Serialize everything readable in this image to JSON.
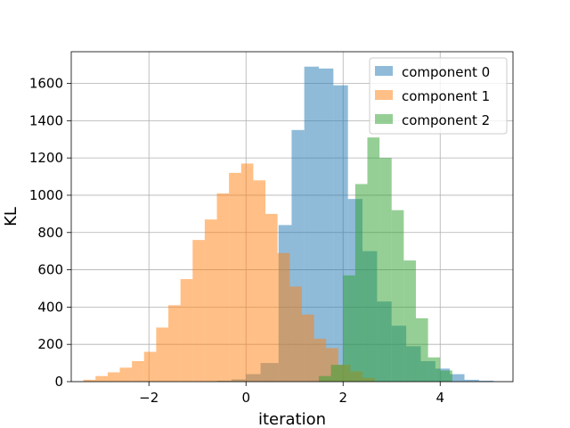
{
  "chart_data": {
    "type": "histogram",
    "xlabel": "iteration",
    "ylabel": "KL",
    "xlim": [
      -3.6,
      5.5
    ],
    "ylim": [
      0,
      1770
    ],
    "x_ticks": [
      -2,
      0,
      2,
      4
    ],
    "x_tick_labels": [
      "−2",
      "0",
      "2",
      "4"
    ],
    "y_ticks": [
      0,
      200,
      400,
      600,
      800,
      1000,
      1200,
      1400,
      1600
    ],
    "y_tick_labels": [
      "0",
      "200",
      "400",
      "600",
      "800",
      "1000",
      "1200",
      "1400",
      "1600"
    ],
    "grid": true,
    "legend_position": "top-right",
    "series": [
      {
        "name": "component 0",
        "color": "#1f77b4",
        "opacity": 0.5,
        "bin_edges": [
          -0.9,
          -0.6,
          -0.3,
          0.0,
          0.3,
          0.67,
          0.94,
          1.2,
          1.5,
          1.8,
          2.1,
          2.4,
          2.7,
          3.0,
          3.3,
          3.6,
          3.9,
          4.2,
          4.5,
          4.8,
          5.1
        ],
        "counts": [
          2,
          5,
          12,
          40,
          100,
          840,
          1350,
          1690,
          1680,
          1590,
          980,
          700,
          430,
          300,
          190,
          110,
          70,
          40,
          10,
          5
        ]
      },
      {
        "name": "component 1",
        "color": "#ff7f0e",
        "opacity": 0.5,
        "bin_edges": [
          -3.35,
          -3.1,
          -2.85,
          -2.6,
          -2.35,
          -2.1,
          -1.85,
          -1.6,
          -1.35,
          -1.1,
          -0.85,
          -0.6,
          -0.35,
          -0.1,
          0.15,
          0.4,
          0.65,
          0.9,
          1.15,
          1.4,
          1.65,
          1.9,
          2.15,
          2.4,
          2.65
        ],
        "counts": [
          10,
          30,
          50,
          75,
          110,
          160,
          290,
          410,
          550,
          760,
          870,
          1010,
          1120,
          1170,
          1080,
          900,
          690,
          510,
          360,
          230,
          180,
          90,
          55,
          20
        ]
      },
      {
        "name": "component 2",
        "color": "#2ca02c",
        "opacity": 0.5,
        "bin_edges": [
          1.5,
          1.75,
          2.0,
          2.25,
          2.5,
          2.75,
          3.0,
          3.25,
          3.5,
          3.75,
          4.0,
          4.25
        ],
        "counts": [
          30,
          90,
          570,
          1060,
          1310,
          1200,
          920,
          650,
          340,
          130,
          60
        ]
      }
    ]
  }
}
